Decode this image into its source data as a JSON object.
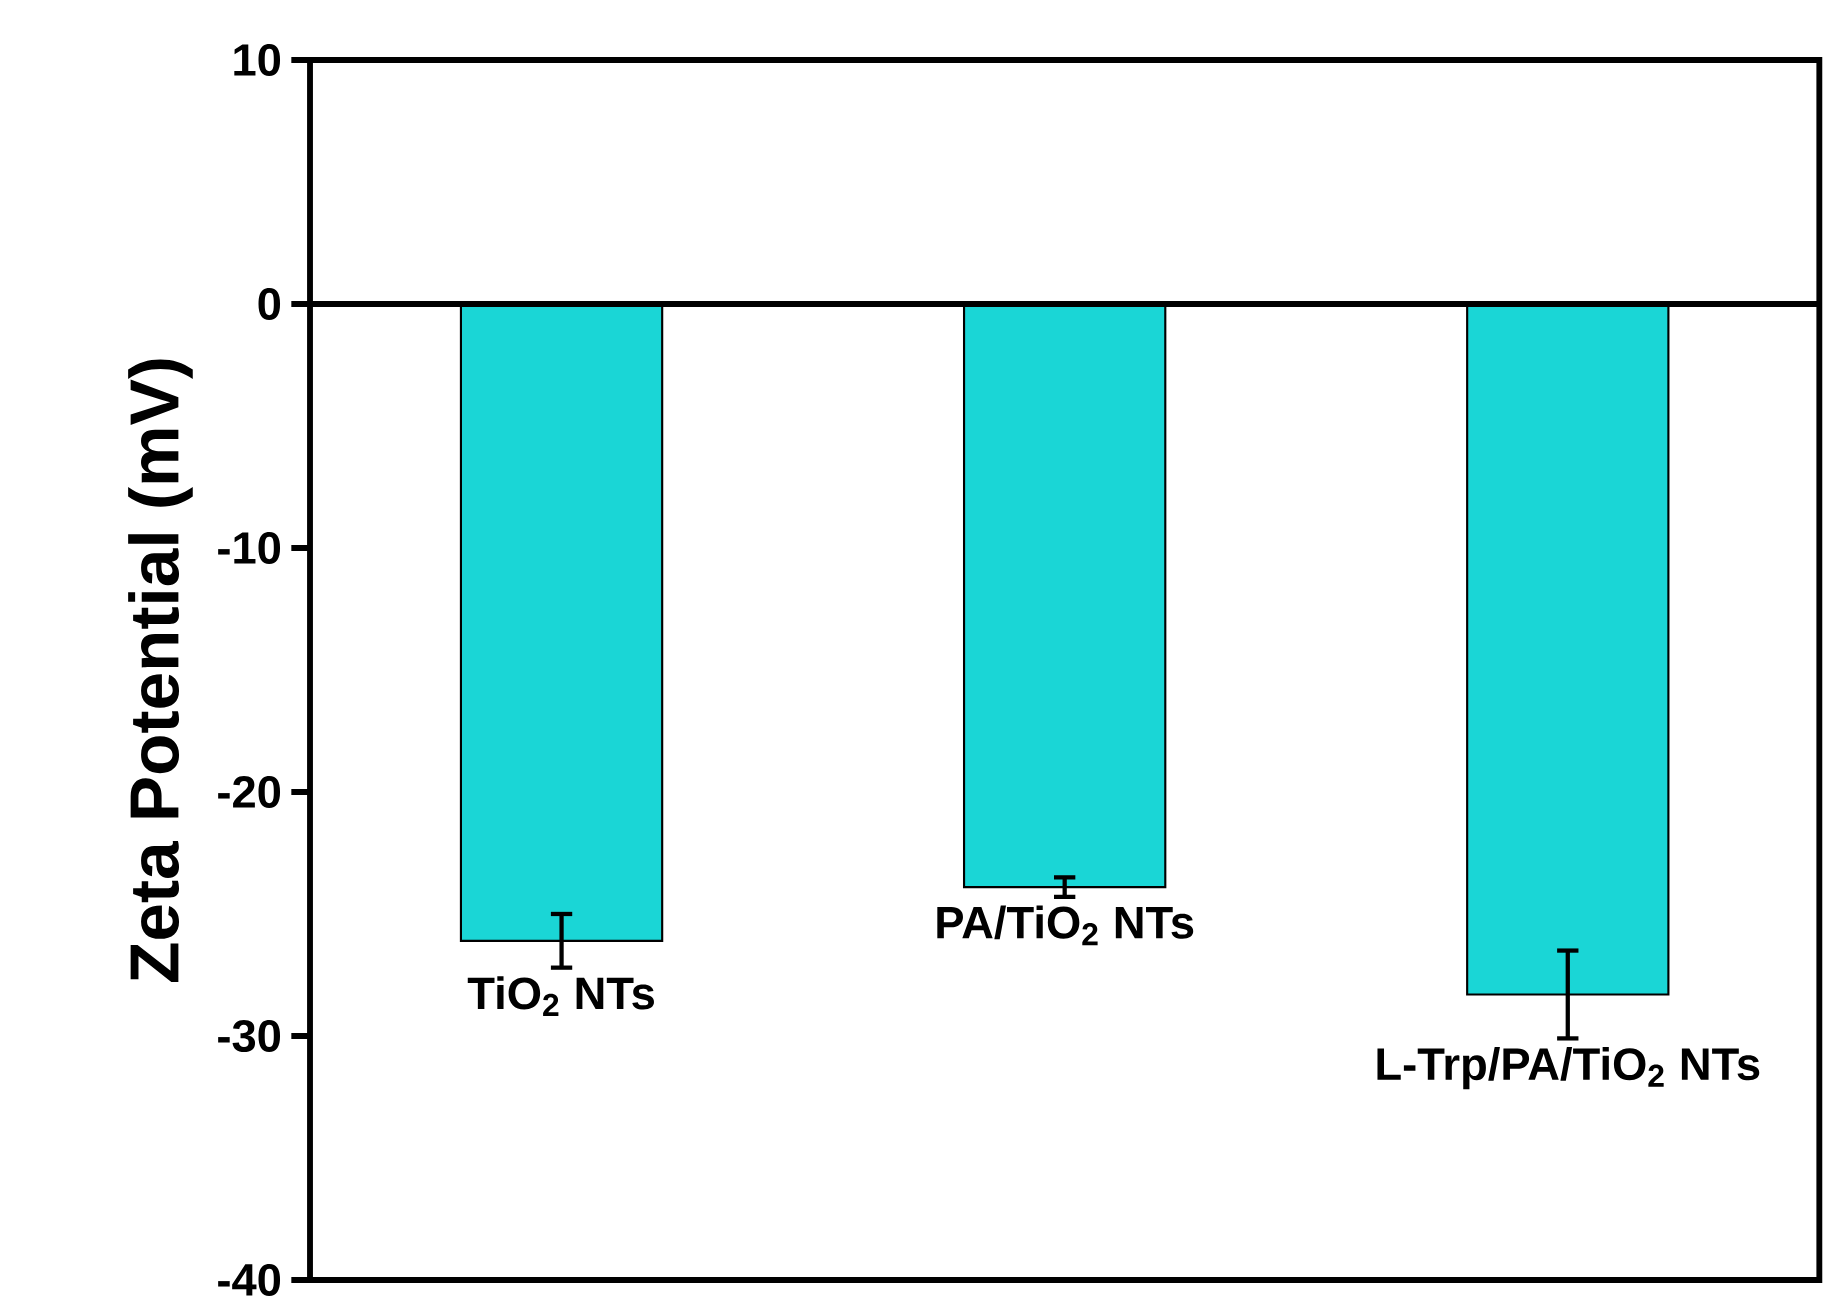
{
  "chart_data": {
    "type": "bar",
    "ylabel": "Zeta Potential (mV)",
    "categories": [
      "TiO$_{2}$ NTs",
      "PA/TiO$_{2}$ NTs",
      "L-Trp/PA/TiO$_{2}$ NTs"
    ],
    "values": [
      -26.1,
      -23.9,
      -28.3
    ],
    "errors": [
      1.1,
      0.4,
      1.8
    ],
    "color": "#1ad6d6",
    "ylim": [
      -40,
      10
    ],
    "yticks": [
      -40,
      -30,
      -20,
      -10,
      0,
      10
    ],
    "ref_lines": [
      {
        "axis": "y",
        "value": 0
      }
    ]
  }
}
